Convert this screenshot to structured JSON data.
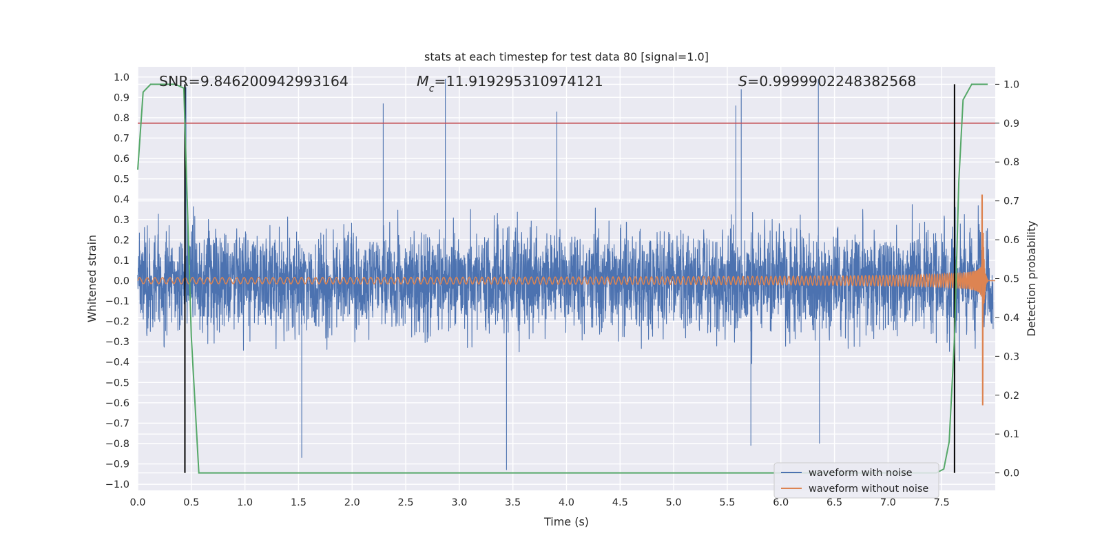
{
  "chart_data": {
    "type": "line",
    "title": "stats at each timestep for test data 80 [signal=1.0]",
    "xlabel": "Time (s)",
    "ylabel": "Whitened strain",
    "y2label": "Detection probability",
    "xlim": [
      0.0,
      8.0
    ],
    "ylim": [
      -1.03,
      1.05
    ],
    "y2lim": [
      -0.045,
      1.045
    ],
    "xticks": [
      "0.0",
      "0.5",
      "1.0",
      "1.5",
      "2.0",
      "2.5",
      "3.0",
      "3.5",
      "4.0",
      "4.5",
      "5.0",
      "5.5",
      "6.0",
      "6.5",
      "7.0",
      "7.5"
    ],
    "yticks": [
      "1.0",
      "0.9",
      "0.8",
      "0.7",
      "0.6",
      "0.5",
      "0.4",
      "0.3",
      "0.2",
      "0.1",
      "0.0",
      "−0.1",
      "−0.2",
      "−0.3",
      "−0.4",
      "−0.5",
      "−0.6",
      "−0.7",
      "−0.8",
      "−0.9",
      "−1.0"
    ],
    "y2ticks": [
      "0.0",
      "0.1",
      "0.2",
      "0.3",
      "0.4",
      "0.5",
      "0.6",
      "0.7",
      "0.8",
      "0.9",
      "1.0"
    ],
    "grid": true,
    "legend_position": "lower right",
    "annotations": {
      "snr": "SNR=9.846200942993164",
      "mc_symbol": "M",
      "mc_sub": "c",
      "mc_value": "=11.919295310974121",
      "s_symbol": "S",
      "s_value": "=0.9999902248382568"
    },
    "series": [
      {
        "name": "waveform with noise",
        "color": "#4c72b0",
        "axis": "left",
        "description_values": "broadband noise, envelope approx ±0.5 with spikes up to 0.99 and down to -0.93",
        "spikes": [
          [
            0.45,
            0.95
          ],
          [
            2.29,
            0.87
          ],
          [
            2.87,
            0.99
          ],
          [
            3.91,
            0.83
          ],
          [
            5.58,
            0.86
          ],
          [
            5.63,
            0.94
          ],
          [
            6.35,
            0.99
          ],
          [
            1.53,
            -0.87
          ],
          [
            3.44,
            -0.93
          ],
          [
            5.72,
            -0.81
          ],
          [
            6.36,
            -0.8
          ]
        ]
      },
      {
        "name": "waveform without noise",
        "color": "#dd8452",
        "axis": "left",
        "chirp_start_amplitude": 0.015,
        "peak_time": 7.88,
        "peak_values": [
          0.42,
          -0.61
        ],
        "merger_end_time": 7.93
      },
      {
        "name": "",
        "color": "#55a868",
        "axis": "right",
        "x": [
          0.0,
          0.05,
          0.12,
          0.2,
          0.35,
          0.43,
          0.5,
          0.57,
          1.0,
          3.0,
          5.0,
          7.0,
          7.45,
          7.52,
          7.57,
          7.62,
          7.66,
          7.7,
          7.78,
          7.85,
          7.93
        ],
        "y": [
          0.78,
          0.98,
          1.0,
          1.0,
          1.0,
          0.99,
          0.35,
          0.0,
          0.0,
          0.0,
          0.0,
          0.0,
          0.0,
          0.01,
          0.08,
          0.35,
          0.75,
          0.96,
          1.0,
          1.0,
          1.0
        ]
      }
    ],
    "hlines": [
      {
        "y2": 0.9,
        "color": "#c44e52"
      }
    ],
    "vlines": [
      {
        "x": 0.44,
        "color": "#000000",
        "y2_range": [
          0.0,
          1.0
        ]
      },
      {
        "x": 7.62,
        "color": "#000000",
        "y2_range": [
          0.0,
          1.0
        ]
      }
    ],
    "colors": {
      "background": "#eaeaf2",
      "grid": "#ffffff",
      "noise": "#4c72b0",
      "clean": "#dd8452",
      "prob": "#55a868",
      "threshold": "#c44e52",
      "vline": "#000000"
    }
  }
}
